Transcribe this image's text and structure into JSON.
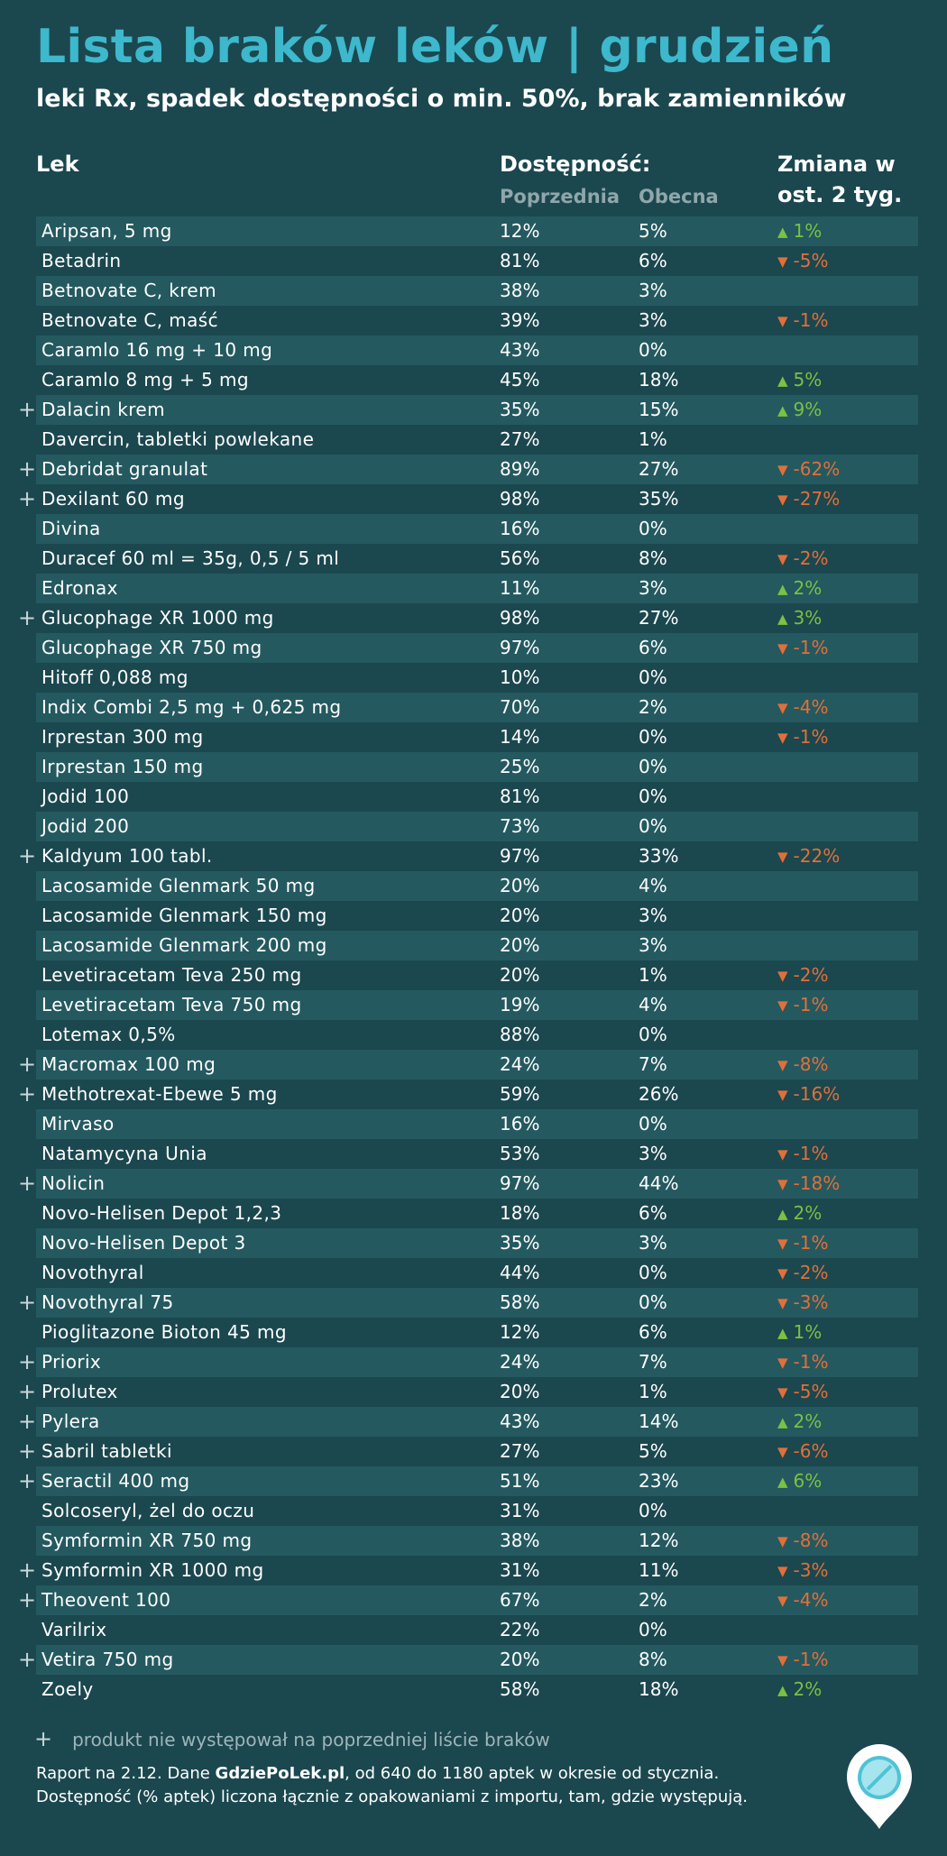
{
  "title": "Lista braków leków | grudzień",
  "subtitle": "leki Rx, spadek dostępności o min. 50%, brak zamienników",
  "headers": {
    "drug": "Lek",
    "availability": "Dostępność:",
    "previous": "Poprzednia",
    "current": "Obecna",
    "change_line1": "Zmiana w",
    "change_line2": "ost. 2 tyg."
  },
  "rows": [
    {
      "new": false,
      "name": "Aripsan, 5 mg",
      "prev": "12%",
      "cur": "5%",
      "dir": "up",
      "change": "1%"
    },
    {
      "new": false,
      "name": "Betadrin",
      "prev": "81%",
      "cur": "6%",
      "dir": "down",
      "change": "-5%"
    },
    {
      "new": false,
      "name": "Betnovate C, krem",
      "prev": "38%",
      "cur": "3%",
      "dir": "",
      "change": ""
    },
    {
      "new": false,
      "name": "Betnovate C, maść",
      "prev": "39%",
      "cur": "3%",
      "dir": "down",
      "change": "-1%"
    },
    {
      "new": false,
      "name": "Caramlo 16 mg + 10 mg",
      "prev": "43%",
      "cur": "0%",
      "dir": "",
      "change": ""
    },
    {
      "new": false,
      "name": "Caramlo 8 mg + 5 mg",
      "prev": "45%",
      "cur": "18%",
      "dir": "up",
      "change": "5%"
    },
    {
      "new": true,
      "name": "Dalacin krem",
      "prev": "35%",
      "cur": "15%",
      "dir": "up",
      "change": "9%"
    },
    {
      "new": false,
      "name": "Davercin, tabletki powlekane",
      "prev": "27%",
      "cur": "1%",
      "dir": "",
      "change": ""
    },
    {
      "new": true,
      "name": "Debridat granulat",
      "prev": "89%",
      "cur": "27%",
      "dir": "down",
      "change": "-62%"
    },
    {
      "new": true,
      "name": "Dexilant 60 mg",
      "prev": "98%",
      "cur": "35%",
      "dir": "down",
      "change": "-27%"
    },
    {
      "new": false,
      "name": "Divina",
      "prev": "16%",
      "cur": "0%",
      "dir": "",
      "change": ""
    },
    {
      "new": false,
      "name": "Duracef 60 ml = 35g, 0,5 / 5 ml",
      "prev": "56%",
      "cur": "8%",
      "dir": "down",
      "change": "-2%"
    },
    {
      "new": false,
      "name": "Edronax",
      "prev": "11%",
      "cur": "3%",
      "dir": "up",
      "change": "2%"
    },
    {
      "new": true,
      "name": "Glucophage XR 1000 mg",
      "prev": "98%",
      "cur": "27%",
      "dir": "up",
      "change": "3%"
    },
    {
      "new": false,
      "name": "Glucophage XR 750 mg",
      "prev": "97%",
      "cur": "6%",
      "dir": "down",
      "change": "-1%"
    },
    {
      "new": false,
      "name": "Hitoff 0,088 mg",
      "prev": "10%",
      "cur": "0%",
      "dir": "",
      "change": ""
    },
    {
      "new": false,
      "name": "Indix Combi 2,5 mg + 0,625 mg",
      "prev": "70%",
      "cur": "2%",
      "dir": "down",
      "change": "-4%"
    },
    {
      "new": false,
      "name": "Irprestan 300 mg",
      "prev": "14%",
      "cur": "0%",
      "dir": "down",
      "change": "-1%"
    },
    {
      "new": false,
      "name": "Irprestan 150 mg",
      "prev": "25%",
      "cur": "0%",
      "dir": "",
      "change": ""
    },
    {
      "new": false,
      "name": "Jodid 100",
      "prev": "81%",
      "cur": "0%",
      "dir": "",
      "change": ""
    },
    {
      "new": false,
      "name": "Jodid 200",
      "prev": "73%",
      "cur": "0%",
      "dir": "",
      "change": ""
    },
    {
      "new": true,
      "name": "Kaldyum 100 tabl.",
      "prev": "97%",
      "cur": "33%",
      "dir": "down",
      "change": "-22%"
    },
    {
      "new": false,
      "name": "Lacosamide Glenmark 50 mg",
      "prev": "20%",
      "cur": "4%",
      "dir": "",
      "change": ""
    },
    {
      "new": false,
      "name": "Lacosamide Glenmark 150 mg",
      "prev": "20%",
      "cur": "3%",
      "dir": "",
      "change": ""
    },
    {
      "new": false,
      "name": "Lacosamide Glenmark 200 mg",
      "prev": "20%",
      "cur": "3%",
      "dir": "",
      "change": ""
    },
    {
      "new": false,
      "name": "Levetiracetam Teva 250 mg",
      "prev": "20%",
      "cur": "1%",
      "dir": "down",
      "change": "-2%"
    },
    {
      "new": false,
      "name": "Levetiracetam Teva 750 mg",
      "prev": "19%",
      "cur": "4%",
      "dir": "down",
      "change": "-1%"
    },
    {
      "new": false,
      "name": "Lotemax 0,5%",
      "prev": "88%",
      "cur": "0%",
      "dir": "",
      "change": ""
    },
    {
      "new": true,
      "name": "Macromax 100 mg",
      "prev": "24%",
      "cur": "7%",
      "dir": "down",
      "change": "-8%"
    },
    {
      "new": true,
      "name": "Methotrexat-Ebewe 5 mg",
      "prev": "59%",
      "cur": "26%",
      "dir": "down",
      "change": "-16%"
    },
    {
      "new": false,
      "name": "Mirvaso",
      "prev": "16%",
      "cur": "0%",
      "dir": "",
      "change": ""
    },
    {
      "new": false,
      "name": "Natamycyna Unia",
      "prev": "53%",
      "cur": "3%",
      "dir": "down",
      "change": "-1%"
    },
    {
      "new": true,
      "name": "Nolicin",
      "prev": "97%",
      "cur": "44%",
      "dir": "down",
      "change": "-18%"
    },
    {
      "new": false,
      "name": "Novo-Helisen Depot 1,2,3",
      "prev": "18%",
      "cur": "6%",
      "dir": "up",
      "change": "2%"
    },
    {
      "new": false,
      "name": "Novo-Helisen Depot 3",
      "prev": "35%",
      "cur": "3%",
      "dir": "down",
      "change": "-1%"
    },
    {
      "new": false,
      "name": "Novothyral",
      "prev": "44%",
      "cur": "0%",
      "dir": "down",
      "change": "-2%"
    },
    {
      "new": true,
      "name": "Novothyral 75",
      "prev": "58%",
      "cur": "0%",
      "dir": "down",
      "change": "-3%"
    },
    {
      "new": false,
      "name": "Pioglitazone Bioton 45 mg",
      "prev": "12%",
      "cur": "6%",
      "dir": "up",
      "change": "1%"
    },
    {
      "new": true,
      "name": "Priorix",
      "prev": "24%",
      "cur": "7%",
      "dir": "down",
      "change": "-1%"
    },
    {
      "new": true,
      "name": "Prolutex",
      "prev": "20%",
      "cur": "1%",
      "dir": "down",
      "change": "-5%"
    },
    {
      "new": true,
      "name": "Pylera",
      "prev": "43%",
      "cur": "14%",
      "dir": "up",
      "change": "2%"
    },
    {
      "new": true,
      "name": "Sabril tabletki",
      "prev": "27%",
      "cur": "5%",
      "dir": "down",
      "change": "-6%"
    },
    {
      "new": true,
      "name": "Seractil 400 mg",
      "prev": "51%",
      "cur": "23%",
      "dir": "up",
      "change": "6%"
    },
    {
      "new": false,
      "name": "Solcoseryl, żel do oczu",
      "prev": "31%",
      "cur": "0%",
      "dir": "",
      "change": ""
    },
    {
      "new": false,
      "name": "Symformin XR 750 mg",
      "prev": "38%",
      "cur": "12%",
      "dir": "down",
      "change": "-8%"
    },
    {
      "new": true,
      "name": "Symformin XR 1000 mg",
      "prev": "31%",
      "cur": "11%",
      "dir": "down",
      "change": "-3%"
    },
    {
      "new": true,
      "name": "Theovent 100",
      "prev": "67%",
      "cur": "2%",
      "dir": "down",
      "change": "-4%"
    },
    {
      "new": false,
      "name": "Varilrix",
      "prev": "22%",
      "cur": "0%",
      "dir": "",
      "change": ""
    },
    {
      "new": true,
      "name": "Vetira 750 mg",
      "prev": "20%",
      "cur": "8%",
      "dir": "down",
      "change": "-1%"
    },
    {
      "new": false,
      "name": "Zoely",
      "prev": "58%",
      "cur": "18%",
      "dir": "up",
      "change": "2%"
    }
  ],
  "legend": {
    "symbol": "+",
    "text": "produkt nie występował na poprzedniej liście braków"
  },
  "footer": {
    "line1_pre": "Raport na 2.12. Dane ",
    "line1_brand": "GdziePoLek.pl",
    "line1_post": ", od 640 do 1180 aptek w okresie od stycznia.",
    "line2": "Dostępność (% aptek) liczona łącznie z opakowaniami z importu, tam, gdzie występują."
  },
  "symbols": {
    "up": "▲",
    "down": "▼",
    "new": "+"
  },
  "colors": {
    "background": "#1b474f",
    "stripe": "#245960",
    "title": "#3db8cc",
    "up": "#7bc142",
    "down": "#e0703a",
    "subheader": "#8fa7ab"
  },
  "logo_icon": "pill-location-pin-icon"
}
